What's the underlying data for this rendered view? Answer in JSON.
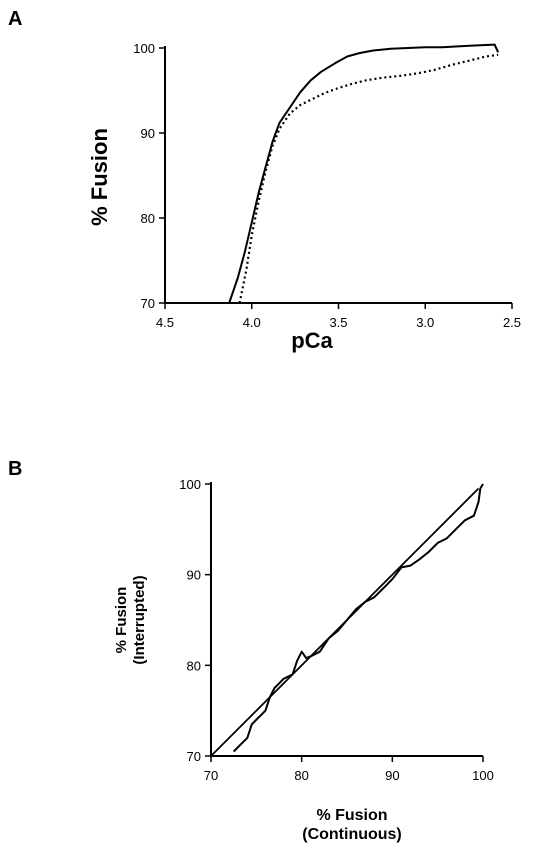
{
  "chart_data": [
    {
      "panel": "A",
      "type": "line",
      "xlabel": "pCa",
      "ylabel": "% Fusion",
      "xlim": [
        4.5,
        2.5
      ],
      "ylim": [
        70,
        100
      ],
      "x_ticks": [
        "4.5",
        "4.0",
        "3.5",
        "3.0",
        "2.5"
      ],
      "y_ticks": [
        "70",
        "80",
        "90",
        "100"
      ],
      "series": [
        {
          "style": "solid",
          "points": [
            [
              4.13,
              70
            ],
            [
              4.08,
              73
            ],
            [
              4.04,
              76
            ],
            [
              4.0,
              79.5
            ],
            [
              3.96,
              83
            ],
            [
              3.92,
              86
            ],
            [
              3.88,
              89
            ],
            [
              3.84,
              91.2
            ],
            [
              3.78,
              93
            ],
            [
              3.72,
              94.8
            ],
            [
              3.66,
              96.2
            ],
            [
              3.6,
              97.2
            ],
            [
              3.52,
              98.2
            ],
            [
              3.45,
              99
            ],
            [
              3.38,
              99.4
            ],
            [
              3.3,
              99.7
            ],
            [
              3.2,
              99.9
            ],
            [
              3.1,
              100
            ],
            [
              3.0,
              100.1
            ],
            [
              2.9,
              100.1
            ],
            [
              2.8,
              100.2
            ],
            [
              2.7,
              100.3
            ],
            [
              2.6,
              100.4
            ],
            [
              2.58,
              99.5
            ]
          ]
        },
        {
          "style": "dotted",
          "points": [
            [
              4.07,
              70
            ],
            [
              4.03,
              74
            ],
            [
              4.0,
              78
            ],
            [
              3.96,
              82
            ],
            [
              3.92,
              85.5
            ],
            [
              3.88,
              88.5
            ],
            [
              3.84,
              90.5
            ],
            [
              3.78,
              92.3
            ],
            [
              3.72,
              93.3
            ],
            [
              3.65,
              94
            ],
            [
              3.58,
              94.7
            ],
            [
              3.5,
              95.3
            ],
            [
              3.42,
              95.8
            ],
            [
              3.34,
              96.2
            ],
            [
              3.25,
              96.5
            ],
            [
              3.15,
              96.7
            ],
            [
              3.05,
              97
            ],
            [
              2.95,
              97.4
            ],
            [
              2.85,
              98
            ],
            [
              2.75,
              98.5
            ],
            [
              2.65,
              99
            ],
            [
              2.58,
              99.2
            ]
          ]
        }
      ]
    },
    {
      "panel": "B",
      "type": "line",
      "xlabel": "% Fusion",
      "xlabel2": "(Continuous)",
      "ylabel": "% Fusion",
      "ylabel2": "(Interrupted)",
      "xlim": [
        70,
        100
      ],
      "ylim": [
        70,
        100
      ],
      "x_ticks": [
        "70",
        "80",
        "90",
        "100"
      ],
      "y_ticks": [
        "70",
        "80",
        "90",
        "100"
      ],
      "series": [
        {
          "style": "identity",
          "points": [
            [
              70,
              70
            ],
            [
              99.5,
              99.5
            ]
          ]
        },
        {
          "style": "solid",
          "points": [
            [
              72.5,
              70.5
            ],
            [
              73,
              71
            ],
            [
              74,
              72
            ],
            [
              74.5,
              73.5
            ],
            [
              75.5,
              74.5
            ],
            [
              76,
              75
            ],
            [
              76.5,
              76.5
            ],
            [
              77,
              77.5
            ],
            [
              78,
              78.5
            ],
            [
              79,
              79
            ],
            [
              79.5,
              80.5
            ],
            [
              80,
              81.5
            ],
            [
              80.5,
              80.8
            ],
            [
              81,
              81
            ],
            [
              82,
              81.5
            ],
            [
              83,
              83
            ],
            [
              84,
              83.8
            ],
            [
              85,
              85
            ],
            [
              86,
              86.2
            ],
            [
              87,
              87
            ],
            [
              88,
              87.5
            ],
            [
              89,
              88.5
            ],
            [
              90,
              89.5
            ],
            [
              91,
              90.8
            ],
            [
              92,
              91
            ],
            [
              93,
              91.7
            ],
            [
              94,
              92.5
            ],
            [
              95,
              93.5
            ],
            [
              96,
              94
            ],
            [
              97,
              95
            ],
            [
              98,
              96
            ],
            [
              99,
              96.5
            ],
            [
              99.5,
              98
            ],
            [
              99.7,
              99.5
            ],
            [
              100,
              100
            ]
          ]
        }
      ]
    }
  ]
}
